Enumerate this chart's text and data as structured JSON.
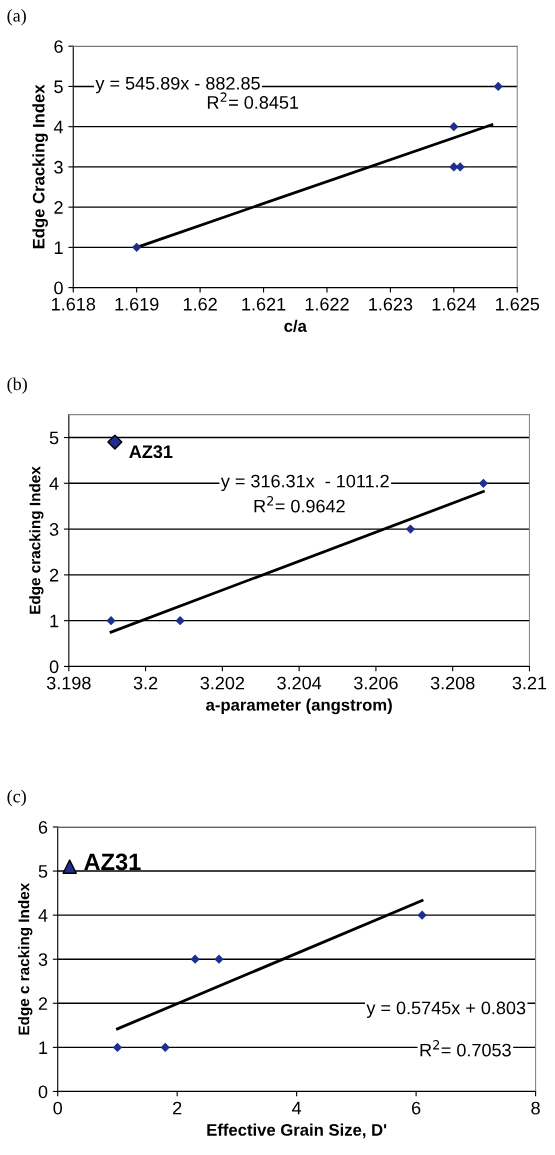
{
  "chart_data": [
    {
      "type": "scatter",
      "title": "(a)",
      "xlabel": "c/a",
      "ylabel": "Edge Cracking Index",
      "xlim": [
        1.618,
        1.625
      ],
      "xticks": [
        1.618,
        1.619,
        {
          "value": 1.62,
          "label": "1.62"
        },
        1.621,
        1.622,
        1.623,
        1.624,
        1.625
      ],
      "ylim": [
        0,
        6
      ],
      "yticks": [
        0,
        1,
        2,
        3,
        4,
        5,
        6
      ],
      "grid": "y",
      "legend": false,
      "annotations": [
        "y = 545.89x - 882.85",
        "R$^{2}$= 0.8451"
      ],
      "series": [
        {
          "color": "#1f2f8f",
          "marker": "diamond",
          "x": [
            1.619,
            1.624,
            1.624,
            1.6241,
            1.6247
          ],
          "values": [
            1,
            4,
            3,
            3,
            5
          ]
        },
        {
          "type": "line",
          "color": "#000000",
          "marker": "none",
          "x": [
            1.619,
            1.6246
          ],
          "values": [
            1.0,
            4.05
          ]
        }
      ]
    },
    {
      "type": "scatter",
      "title": "(b)",
      "xlabel": "a-parameter (angstrom)",
      "ylabel": "Edge cracking Index",
      "xlim": [
        3.198,
        3.21
      ],
      "xticks": [
        3.198,
        {
          "value": 3.2,
          "label": "3.2"
        },
        3.202,
        3.204,
        3.206,
        3.208,
        {
          "value": 3.21,
          "label": "3.21"
        }
      ],
      "ylim": [
        0,
        5.5
      ],
      "yticks": [
        0,
        1,
        2,
        3,
        4,
        5
      ],
      "grid": "y",
      "legend": false,
      "annotations": [
        "y = 316.31x  - 1011.2",
        "R$^{2}$= 0.9642"
      ],
      "series": [
        {
          "color": "#1f2f8f",
          "marker": "diamond",
          "x": [
            3.1991,
            3.2009,
            3.2069,
            3.2088
          ],
          "values": [
            1,
            1,
            3,
            4
          ]
        },
        {
          "name": "AZ31",
          "color": "#1f2f8f",
          "marker": "diamond",
          "x": [
            3.1992
          ],
          "values": [
            4.9
          ]
        },
        {
          "type": "line",
          "color": "#000000",
          "marker": "none",
          "x": [
            3.1991,
            3.2088
          ],
          "values": [
            0.75,
            3.82
          ]
        }
      ]
    },
    {
      "type": "scatter",
      "title": "(c)",
      "xlabel": "Effective Grain Size, D'",
      "ylabel": "Edge c racking Index",
      "xlim": [
        0,
        8
      ],
      "xticks": [
        0,
        2,
        4,
        6,
        8
      ],
      "ylim": [
        0,
        6
      ],
      "yticks": [
        0,
        1,
        2,
        3,
        4,
        5,
        6
      ],
      "grid": "y",
      "legend": false,
      "annotations": [
        "y = 0.5745x + 0.803",
        "R$^{2}$= 0.7053"
      ],
      "series": [
        {
          "color": "#1f2f8f",
          "marker": "diamond",
          "x": [
            1,
            1.8,
            2.3,
            2.7,
            6.1
          ],
          "values": [
            1,
            1,
            3,
            3,
            4
          ]
        },
        {
          "name": "AZ31",
          "color": "#1f2f8f",
          "marker": "triangle",
          "x": [
            0.2
          ],
          "values": [
            5.1
          ]
        },
        {
          "type": "line",
          "color": "#000000",
          "marker": "none",
          "x": [
            1,
            6.1
          ],
          "values": [
            1.42,
            4.33
          ]
        }
      ]
    }
  ]
}
